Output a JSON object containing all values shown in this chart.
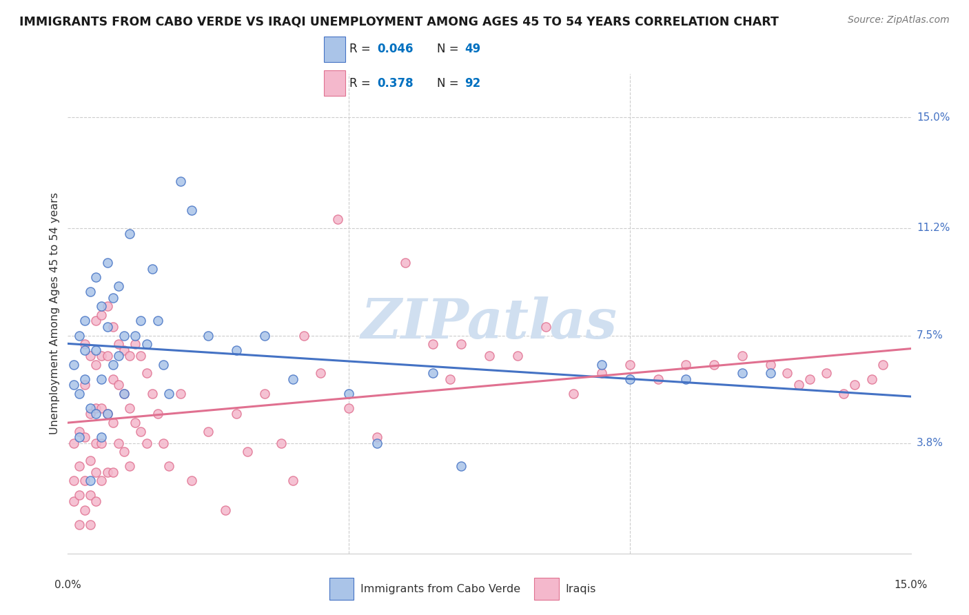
{
  "title": "IMMIGRANTS FROM CABO VERDE VS IRAQI UNEMPLOYMENT AMONG AGES 45 TO 54 YEARS CORRELATION CHART",
  "source": "Source: ZipAtlas.com",
  "ylabel": "Unemployment Among Ages 45 to 54 years",
  "ytick_labels": [
    "15.0%",
    "11.2%",
    "7.5%",
    "3.8%"
  ],
  "ytick_values": [
    0.15,
    0.112,
    0.075,
    0.038
  ],
  "xtick_labels": [
    "0.0%",
    "15.0%"
  ],
  "xtick_values": [
    0.0,
    0.15
  ],
  "xmin": 0.0,
  "xmax": 0.15,
  "ymin": 0.0,
  "ymax": 0.165,
  "series1_name": "Immigrants from Cabo Verde",
  "series1_R": "0.046",
  "series1_N": "49",
  "series1_color": "#aac4e8",
  "series1_edge_color": "#4472c4",
  "series1_line_color": "#4472c4",
  "series2_name": "Iraqis",
  "series2_R": "0.378",
  "series2_N": "92",
  "series2_color": "#f4b8cc",
  "series2_edge_color": "#e07090",
  "series2_line_color": "#e07090",
  "legend_value_color": "#0070c0",
  "watermark": "ZIPatlas",
  "watermark_color": "#d0dff0",
  "background_color": "#ffffff",
  "grid_color": "#cccccc",
  "title_color": "#1a1a1a",
  "label_color": "#333333",
  "right_tick_color": "#4472c4",
  "series1_x": [
    0.001,
    0.001,
    0.002,
    0.002,
    0.002,
    0.003,
    0.003,
    0.003,
    0.004,
    0.004,
    0.004,
    0.005,
    0.005,
    0.005,
    0.006,
    0.006,
    0.006,
    0.007,
    0.007,
    0.007,
    0.008,
    0.008,
    0.009,
    0.009,
    0.01,
    0.01,
    0.011,
    0.012,
    0.013,
    0.014,
    0.015,
    0.016,
    0.017,
    0.018,
    0.02,
    0.022,
    0.025,
    0.03,
    0.035,
    0.04,
    0.05,
    0.055,
    0.065,
    0.07,
    0.095,
    0.1,
    0.11,
    0.12,
    0.125
  ],
  "series1_y": [
    0.065,
    0.058,
    0.075,
    0.055,
    0.04,
    0.08,
    0.06,
    0.07,
    0.09,
    0.05,
    0.025,
    0.095,
    0.07,
    0.048,
    0.085,
    0.06,
    0.04,
    0.1,
    0.078,
    0.048,
    0.088,
    0.065,
    0.092,
    0.068,
    0.075,
    0.055,
    0.11,
    0.075,
    0.08,
    0.072,
    0.098,
    0.08,
    0.065,
    0.055,
    0.128,
    0.118,
    0.075,
    0.07,
    0.075,
    0.06,
    0.055,
    0.038,
    0.062,
    0.03,
    0.065,
    0.06,
    0.06,
    0.062,
    0.062
  ],
  "series2_x": [
    0.001,
    0.001,
    0.001,
    0.002,
    0.002,
    0.002,
    0.002,
    0.003,
    0.003,
    0.003,
    0.003,
    0.003,
    0.004,
    0.004,
    0.004,
    0.004,
    0.004,
    0.005,
    0.005,
    0.005,
    0.005,
    0.005,
    0.005,
    0.006,
    0.006,
    0.006,
    0.006,
    0.006,
    0.007,
    0.007,
    0.007,
    0.007,
    0.008,
    0.008,
    0.008,
    0.008,
    0.009,
    0.009,
    0.009,
    0.01,
    0.01,
    0.01,
    0.011,
    0.011,
    0.011,
    0.012,
    0.012,
    0.013,
    0.013,
    0.014,
    0.014,
    0.015,
    0.016,
    0.017,
    0.018,
    0.02,
    0.022,
    0.025,
    0.028,
    0.03,
    0.032,
    0.035,
    0.038,
    0.04,
    0.042,
    0.045,
    0.048,
    0.05,
    0.055,
    0.06,
    0.065,
    0.068,
    0.07,
    0.075,
    0.08,
    0.085,
    0.09,
    0.095,
    0.1,
    0.105,
    0.11,
    0.115,
    0.12,
    0.125,
    0.128,
    0.13,
    0.132,
    0.135,
    0.138,
    0.14,
    0.143,
    0.145
  ],
  "series2_y": [
    0.038,
    0.025,
    0.018,
    0.042,
    0.03,
    0.02,
    0.01,
    0.072,
    0.058,
    0.04,
    0.025,
    0.015,
    0.068,
    0.048,
    0.032,
    0.02,
    0.01,
    0.08,
    0.065,
    0.05,
    0.038,
    0.028,
    0.018,
    0.082,
    0.068,
    0.05,
    0.038,
    0.025,
    0.085,
    0.068,
    0.048,
    0.028,
    0.078,
    0.06,
    0.045,
    0.028,
    0.072,
    0.058,
    0.038,
    0.07,
    0.055,
    0.035,
    0.068,
    0.05,
    0.03,
    0.072,
    0.045,
    0.068,
    0.042,
    0.062,
    0.038,
    0.055,
    0.048,
    0.038,
    0.03,
    0.055,
    0.025,
    0.042,
    0.015,
    0.048,
    0.035,
    0.055,
    0.038,
    0.025,
    0.075,
    0.062,
    0.115,
    0.05,
    0.04,
    0.1,
    0.072,
    0.06,
    0.072,
    0.068,
    0.068,
    0.078,
    0.055,
    0.062,
    0.065,
    0.06,
    0.065,
    0.065,
    0.068,
    0.065,
    0.062,
    0.058,
    0.06,
    0.062,
    0.055,
    0.058,
    0.06,
    0.065
  ]
}
